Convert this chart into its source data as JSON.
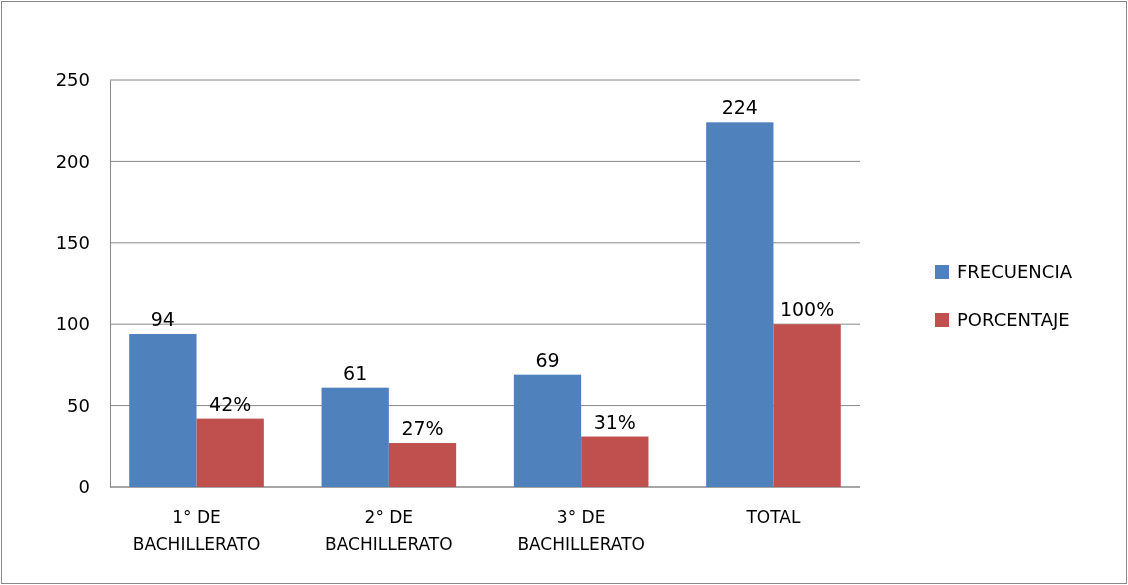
{
  "chart_data": {
    "type": "bar",
    "categories": [
      "1° DE BACHILLERATO",
      "2° DE BACHILLERATO",
      "3° DE BACHILLERATO",
      "TOTAL"
    ],
    "series": [
      {
        "name": "FRECUENCIA",
        "color": "#4f81bd",
        "values": [
          94,
          61,
          69,
          224
        ],
        "value_labels": [
          "94",
          "61",
          "69",
          "224"
        ]
      },
      {
        "name": "PORCENTAJE",
        "color": "#c0504d",
        "values": [
          42,
          27,
          31,
          100
        ],
        "value_labels": [
          "42%",
          "27%",
          "31%",
          "100%"
        ]
      }
    ],
    "ylim": [
      0,
      250
    ],
    "yticks": [
      0,
      50,
      100,
      150,
      200,
      250
    ],
    "grid": "y",
    "legend": "right"
  }
}
